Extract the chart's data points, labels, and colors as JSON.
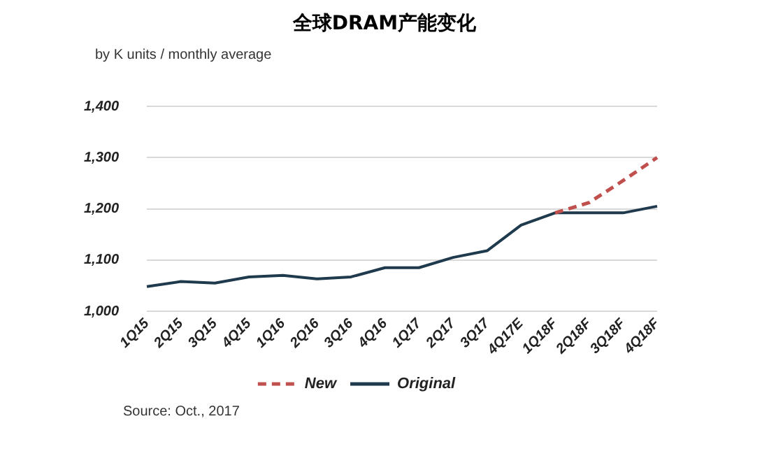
{
  "chart_data": {
    "type": "line",
    "title": "全球DRAM产能变化",
    "ylabel": "by K units / monthly average",
    "categories": [
      "1Q15",
      "2Q15",
      "3Q15",
      "4Q15",
      "1Q16",
      "2Q16",
      "3Q16",
      "4Q16",
      "1Q17",
      "2Q17",
      "3Q17",
      "4Q17E",
      "1Q18F",
      "2Q18F",
      "3Q18F",
      "4Q18F"
    ],
    "series": [
      {
        "name": "New",
        "color": "#c0504d",
        "line_style": "dashed",
        "values": [
          null,
          null,
          null,
          null,
          null,
          null,
          null,
          null,
          null,
          null,
          null,
          null,
          1192,
          1212,
          1255,
          1300
        ]
      },
      {
        "name": "Original",
        "color": "#1f3a4d",
        "line_style": "solid",
        "values": [
          1048,
          1058,
          1055,
          1067,
          1070,
          1063,
          1067,
          1085,
          1085,
          1105,
          1118,
          1168,
          1192,
          1192,
          1192,
          1205
        ]
      }
    ],
    "ylim": [
      1000,
      1400
    ],
    "yticks": [
      {
        "value": 1000,
        "label": "1,000"
      },
      {
        "value": 1100,
        "label": "1,100"
      },
      {
        "value": 1200,
        "label": "1,200"
      },
      {
        "value": 1300,
        "label": "1,300"
      },
      {
        "value": 1400,
        "label": "1,400"
      }
    ],
    "grid": "y",
    "legend": "bottom",
    "marker": "none",
    "annotations": [
      "Source: Oct., 2017"
    ]
  }
}
